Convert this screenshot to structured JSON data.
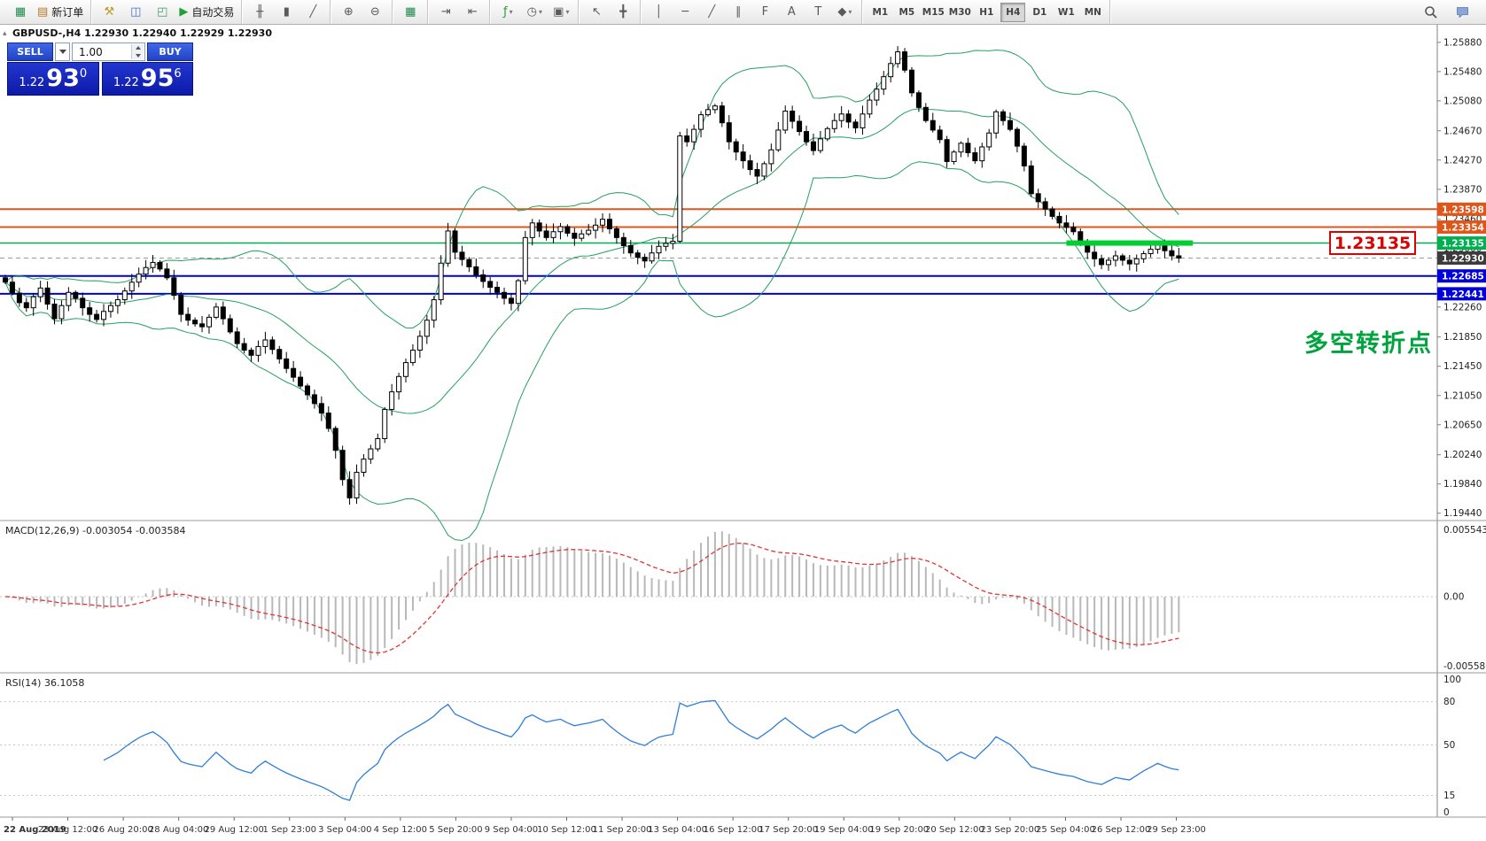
{
  "chart_header": "GBPUSD-,H4  1.22930 1.22940 1.22929 1.22930",
  "icons": {
    "collapse": "▴",
    "caret": "▾"
  },
  "toolbar": {
    "groups": [
      [
        {
          "name": "terminal-icon",
          "glyph": "▦",
          "color": "#1f8a4c"
        },
        {
          "name": "new-order-button",
          "glyph": "▤",
          "color": "#b8762a",
          "label": "新订单"
        }
      ],
      [
        {
          "name": "mql-editor-icon",
          "glyph": "⚒",
          "color": "#c19a2b"
        },
        {
          "name": "data-window-icon",
          "glyph": "◫",
          "color": "#4a6fc8"
        },
        {
          "name": "navigator-icon",
          "glyph": "◰",
          "color": "#3f9e63"
        },
        {
          "name": "auto-trading-button",
          "glyph": "▶",
          "color": "#1fa032",
          "label": "自动交易"
        }
      ],
      [
        {
          "name": "bar-chart-icon",
          "glyph": "╫"
        },
        {
          "name": "candlestick-chart-icon",
          "glyph": "▮"
        },
        {
          "name": "line-chart-icon",
          "glyph": "╱"
        }
      ],
      [
        {
          "name": "zoom-in-icon",
          "glyph": "⊕"
        },
        {
          "name": "zoom-out-icon",
          "glyph": "⊖"
        }
      ],
      [
        {
          "name": "tile-windows-icon",
          "glyph": "▦",
          "color": "#1f8a4c"
        }
      ],
      [
        {
          "name": "auto-scroll-icon",
          "glyph": "⇥"
        },
        {
          "name": "chart-shift-icon",
          "glyph": "⇤"
        }
      ],
      [
        {
          "name": "indicators-button",
          "glyph": "ƒ",
          "color": "#1fa032",
          "dropdown": true
        },
        {
          "name": "periods-button",
          "glyph": "◷",
          "dropdown": true
        },
        {
          "name": "templates-button",
          "glyph": "▣",
          "dropdown": true
        }
      ],
      [
        {
          "name": "cursor-icon",
          "glyph": "↖"
        },
        {
          "name": "crosshair-icon",
          "glyph": "╋"
        }
      ],
      [
        {
          "name": "vertical-line-icon",
          "glyph": "│"
        },
        {
          "name": "horizontal-line-icon",
          "glyph": "─"
        },
        {
          "name": "trendline-icon",
          "glyph": "╱"
        },
        {
          "name": "equidistant-channel-icon",
          "glyph": "∥"
        },
        {
          "name": "fibonacci-icon",
          "glyph": "F"
        },
        {
          "name": "text-icon",
          "glyph": "A"
        },
        {
          "name": "text-label-icon",
          "glyph": "T"
        },
        {
          "name": "arrows-dropdown",
          "glyph": "◆",
          "dropdown": true
        }
      ]
    ],
    "timeframes": [
      {
        "label": "M1"
      },
      {
        "label": "M5"
      },
      {
        "label": "M15"
      },
      {
        "label": "M30"
      },
      {
        "label": "H1"
      },
      {
        "label": "H4",
        "active": true
      },
      {
        "label": "D1"
      },
      {
        "label": "W1"
      },
      {
        "label": "MN"
      }
    ],
    "right_icons": [
      {
        "name": "search-icon",
        "type": "magnifier"
      },
      {
        "name": "community-icon",
        "type": "chat"
      }
    ]
  },
  "one_click": {
    "sell_label": "SELL",
    "buy_label": "BUY",
    "volume": "1.00",
    "sell_price_prefix": "1.22",
    "sell_price_big": "93",
    "sell_price_sup": "0",
    "buy_price_prefix": "1.22",
    "buy_price_big": "95",
    "buy_price_sup": "6"
  },
  "annotation": {
    "text": "多空转折点",
    "price_label": "1.23135"
  },
  "macd": {
    "label": "MACD(12,26,9) -0.003054 -0.003584",
    "axis": [
      "0.005543",
      "0.00",
      "-0.005583"
    ]
  },
  "rsi": {
    "label": "RSI(14) 36.1058",
    "axis": [
      "100",
      "80",
      "50",
      "15",
      "0"
    ]
  },
  "chart_data": {
    "type": "candlestick",
    "symbol": "GBPUSD-",
    "timeframe": "H4",
    "current": {
      "open": 1.2293,
      "high": 1.2294,
      "low": 1.22929,
      "close": 1.2293,
      "bid": 1.2293,
      "ask": 1.22956
    },
    "y_axis": {
      "top": 1.2612,
      "bottom": 1.1934
    },
    "price_ticks": [
      "1.25880",
      "1.25480",
      "1.25080",
      "1.24670",
      "1.24270",
      "1.23870",
      "1.23460",
      "1.23060",
      "1.22660",
      "1.22260",
      "1.21850",
      "1.21450",
      "1.21050",
      "1.20650",
      "1.20240",
      "1.19840",
      "1.19440"
    ],
    "closes": [
      1.226,
      1.2245,
      1.2232,
      1.2225,
      1.224,
      1.2252,
      1.223,
      1.221,
      1.2228,
      1.2246,
      1.2238,
      1.2225,
      1.2216,
      1.2209,
      1.222,
      1.2228,
      1.2236,
      1.2248,
      1.226,
      1.2271,
      1.228,
      1.2287,
      1.2278,
      1.2266,
      1.2242,
      1.2216,
      1.2208,
      1.2203,
      1.2199,
      1.2212,
      1.2226,
      1.221,
      1.2192,
      1.2176,
      1.2167,
      1.216,
      1.2172,
      1.2181,
      1.2168,
      1.2155,
      1.2142,
      1.213,
      1.2118,
      1.2106,
      1.2094,
      1.2081,
      1.206,
      1.203,
      1.199,
      1.1965,
      1.2,
      1.2018,
      1.2032,
      1.2046,
      1.2086,
      1.211,
      1.2131,
      1.215,
      1.2167,
      1.2186,
      1.2208,
      1.2236,
      1.2286,
      1.233,
      1.2301,
      1.2291,
      1.2281,
      1.227,
      1.2261,
      1.2253,
      1.2246,
      1.2238,
      1.2231,
      1.2262,
      1.2321,
      1.2341,
      1.233,
      1.2321,
      1.2329,
      1.2336,
      1.2327,
      1.232,
      1.2326,
      1.2331,
      1.2338,
      1.2346,
      1.2333,
      1.2321,
      1.231,
      1.23,
      1.2294,
      1.2289,
      1.23,
      1.2309,
      1.2313,
      1.2316,
      1.246,
      1.2452,
      1.2469,
      1.2489,
      1.2496,
      1.2501,
      1.2478,
      1.2452,
      1.2438,
      1.2426,
      1.2414,
      1.2405,
      1.2422,
      1.2441,
      1.2468,
      1.2494,
      1.248,
      1.2466,
      1.2452,
      1.244,
      1.2456,
      1.247,
      1.2481,
      1.249,
      1.2479,
      1.2471,
      1.249,
      1.2509,
      1.2524,
      1.2541,
      1.2559,
      1.2575,
      1.255,
      1.2519,
      1.2499,
      1.2481,
      1.2468,
      1.2455,
      1.2425,
      1.2438,
      1.245,
      1.2437,
      1.2426,
      1.2445,
      1.2464,
      1.2493,
      1.2481,
      1.2469,
      1.2446,
      1.2419,
      1.2381,
      1.237,
      1.236,
      1.235,
      1.2341,
      1.2335,
      1.2329,
      1.2315,
      1.2301,
      1.2292,
      1.2284,
      1.229,
      1.2296,
      1.229,
      1.2285,
      1.2292,
      1.2299,
      1.2305,
      1.2311,
      1.2303,
      1.2296,
      1.2293
    ],
    "levels": [
      {
        "value": 1.23598,
        "label": "1.23598",
        "color": "#e0561a",
        "width": 2
      },
      {
        "value": 1.23354,
        "label": "1.23354",
        "color": "#e0561a",
        "width": 2
      },
      {
        "value": 1.23135,
        "label": "1.23135",
        "color": "#00b050",
        "width": 1.5,
        "segment": [
          151,
          169
        ],
        "segment_color": "#00ce32"
      },
      {
        "value": 1.2293,
        "label": "1.22930",
        "color": "#9a9a9a",
        "label_bg": "#3c3c3c",
        "width": 1,
        "dash": true
      },
      {
        "value": 1.22685,
        "label": "1.22685",
        "color": "#0000d8",
        "width": 2
      },
      {
        "value": 1.22441,
        "label": "1.22441",
        "color": "#0000d8",
        "width": 2
      }
    ],
    "bollinger": {
      "period": 20,
      "deviation": 2,
      "color": "#25a05f"
    },
    "macd": {
      "fast": 12,
      "slow": 26,
      "signal": 9,
      "value": -0.003054,
      "signal_value": -0.003584,
      "histogram_color": "#b8b8b8",
      "signal_color": "#e03535"
    },
    "rsi": {
      "period": 14,
      "value": 36.1058,
      "levels": [
        80,
        50,
        15
      ],
      "color": "#2f7ed8"
    },
    "time_labels": [
      "22 Aug 2019",
      "23 Aug 12:00",
      "26 Aug 20:00",
      "28 Aug 04:00",
      "29 Aug 12:00",
      "1 Sep 23:00",
      "3 Sep 04:00",
      "4 Sep 12:00",
      "5 Sep 20:00",
      "9 Sep 04:00",
      "10 Sep 12:00",
      "11 Sep 20:00",
      "13 Sep 04:00",
      "16 Sep 12:00",
      "17 Sep 20:00",
      "19 Sep 04:00",
      "19 Sep 20:00",
      "20 Sep 12:00",
      "23 Sep 20:00",
      "25 Sep 04:00",
      "26 Sep 12:00",
      "29 Sep 23:00"
    ]
  }
}
